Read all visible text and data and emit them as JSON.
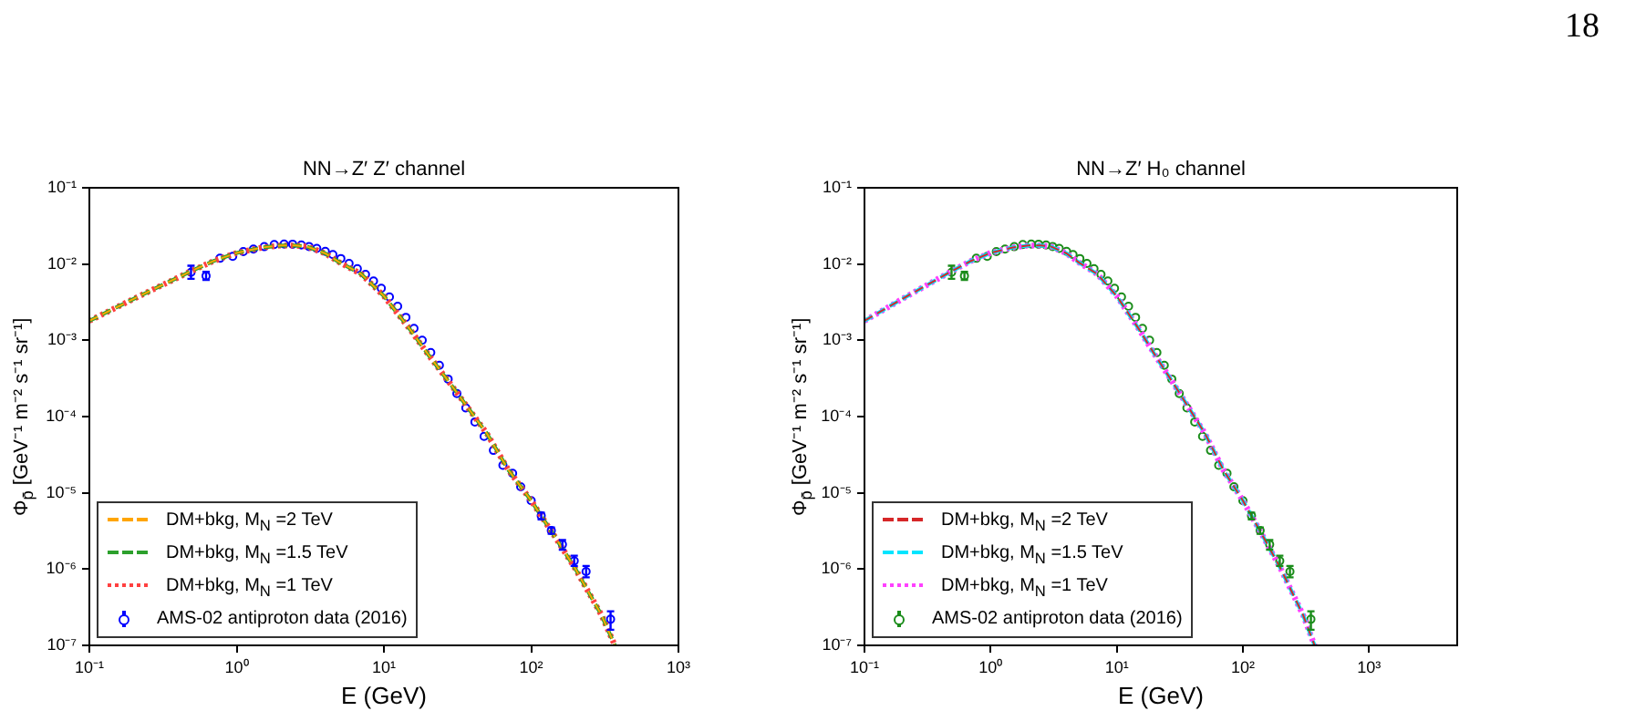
{
  "chart_data": [
    {
      "type": "line",
      "title": "NN→Z′ Z′ channel",
      "xlabel": "E (GeV)",
      "ylabel": "Φ$_{p̄}$ [GeV⁻¹ m⁻² s⁻¹ sr⁻¹]",
      "log": "xy",
      "legend": "bottom left",
      "xlim": [
        0.1,
        1000
      ],
      "xticks": [
        {
          "value": 0.1,
          "label": "10⁻¹"
        },
        {
          "value": 1,
          "label": "10⁰"
        },
        {
          "value": 10,
          "label": "10¹"
        },
        {
          "value": 100,
          "label": "10²"
        },
        {
          "value": 1000,
          "label": "10³"
        }
      ],
      "ylim": [
        1e-07,
        0.1
      ],
      "yticks": [
        {
          "value": 1e-07,
          "label": "10⁻⁷"
        },
        {
          "value": 1e-06,
          "label": "10⁻⁶"
        },
        {
          "value": 1e-05,
          "label": "10⁻⁵"
        },
        {
          "value": 0.0001,
          "label": "10⁻⁴"
        },
        {
          "value": 0.001,
          "label": "10⁻³"
        },
        {
          "value": 0.01,
          "label": "10⁻²"
        },
        {
          "value": 0.1,
          "label": "10⁻¹"
        }
      ],
      "series": [
        {
          "name": "DM+bkg, M$_{N}$ =2 TeV",
          "type": "line",
          "color": "#ffa500",
          "line_style": "dashed",
          "x": [
            0.1,
            0.2,
            0.3,
            0.5,
            0.7,
            1,
            1.5,
            2,
            2.5,
            3,
            4,
            5,
            7,
            10,
            15,
            20,
            30,
            50,
            70,
            100,
            150,
            200,
            300,
            370
          ],
          "values": [
            0.0018,
            0.0035,
            0.0051,
            0.0082,
            0.011,
            0.014,
            0.0165,
            0.0175,
            0.0175,
            0.017,
            0.0138,
            0.0105,
            0.0074,
            0.0038,
            0.0014,
            0.00065,
            0.00023,
            6e-05,
            2e-05,
            7.9e-06,
            2.4e-06,
            1e-06,
            2.5e-07,
            1e-07
          ]
        },
        {
          "name": "DM+bkg, M$_{N}$ =1.5 TeV",
          "type": "line",
          "color": "#2ca02c",
          "line_style": "dashed",
          "x": [
            0.1,
            0.2,
            0.3,
            0.5,
            0.7,
            1,
            1.5,
            2,
            2.5,
            3,
            4,
            5,
            7,
            10,
            15,
            20,
            30,
            50,
            70,
            100,
            150,
            200,
            300,
            370
          ],
          "values": [
            0.0018,
            0.0035,
            0.0051,
            0.0082,
            0.011,
            0.014,
            0.0165,
            0.0175,
            0.0175,
            0.017,
            0.0138,
            0.0105,
            0.0074,
            0.0038,
            0.0014,
            0.00065,
            0.00023,
            6e-05,
            2e-05,
            7.9e-06,
            2.4e-06,
            1e-06,
            2.5e-07,
            1e-07
          ]
        },
        {
          "name": "DM+bkg, M$_{N}$ =1 TeV",
          "type": "line",
          "color": "#ff4040",
          "line_style": "dotted",
          "x": [
            0.1,
            0.2,
            0.3,
            0.5,
            0.7,
            1,
            1.5,
            2,
            2.5,
            3,
            4,
            5,
            7,
            10,
            15,
            20,
            30,
            50,
            70,
            100,
            150,
            200,
            300,
            370
          ],
          "values": [
            0.0018,
            0.0035,
            0.0051,
            0.0082,
            0.011,
            0.014,
            0.0165,
            0.0175,
            0.0175,
            0.017,
            0.0138,
            0.0105,
            0.0074,
            0.0038,
            0.0014,
            0.00065,
            0.00023,
            6e-05,
            2e-05,
            7.9e-06,
            2.4e-06,
            1e-06,
            2.5e-07,
            1e-07
          ]
        },
        {
          "name": "AMS-02 antiproton data (2016)",
          "type": "scatter",
          "color": "#0000ff",
          "marker": "circle",
          "x": [
            0.49,
            0.62,
            0.77,
            0.94,
            1.11,
            1.3,
            1.54,
            1.8,
            2.1,
            2.4,
            2.75,
            3.1,
            3.5,
            4,
            4.5,
            5.1,
            5.8,
            6.6,
            7.5,
            8.5,
            9.6,
            10.9,
            12.4,
            14.1,
            16,
            18.2,
            20.8,
            23.8,
            27.3,
            31.3,
            36,
            41.5,
            47.9,
            55.4,
            64.3,
            74.8,
            84.9,
            100,
            117,
            137,
            163,
            196,
            236,
            346
          ],
          "values": [
            0.0078,
            0.007,
            0.0119,
            0.0126,
            0.0146,
            0.0157,
            0.0169,
            0.018,
            0.0183,
            0.0182,
            0.0178,
            0.017,
            0.016,
            0.0147,
            0.0133,
            0.0118,
            0.0102,
            0.0087,
            0.0073,
            0.006,
            0.0048,
            0.0037,
            0.0028,
            0.002,
            0.00143,
            0.001,
            0.00069,
            0.00047,
            0.00031,
            0.0002,
            0.00013,
            8.5e-05,
            5.5e-05,
            3.6e-05,
            2.3e-05,
            1.8e-05,
            1.2e-05,
            7.9e-06,
            5e-06,
            3.2e-06,
            2.1e-06,
            1.28e-06,
            9.3e-07,
            2.2e-07
          ],
          "errors": [
            [
              0.0064,
              0.0095
            ],
            [
              0.0062,
              0.0079
            ],
            null,
            null,
            null,
            null,
            null,
            null,
            null,
            null,
            null,
            null,
            null,
            null,
            null,
            null,
            null,
            null,
            null,
            null,
            null,
            null,
            null,
            null,
            null,
            null,
            null,
            null,
            null,
            null,
            null,
            null,
            null,
            null,
            null,
            null,
            null,
            null,
            [
              4.5e-06,
              5.5e-06
            ],
            [
              2.9e-06,
              3.5e-06
            ],
            [
              1.8e-06,
              2.4e-06
            ],
            [
              1.1e-06,
              1.5e-06
            ],
            [
              7.8e-07,
              1.1e-06
            ],
            [
              1.6e-07,
              2.8e-07
            ]
          ]
        }
      ]
    },
    {
      "type": "line",
      "title": "NN→Z′ H₀ channel",
      "xlabel": "E (GeV)",
      "ylabel": "Φ$_{p̄}$ [GeV⁻¹ m⁻² s⁻¹ sr⁻¹]",
      "log": "xy",
      "legend": "bottom left",
      "annotations": [
        "18"
      ],
      "xlim": [
        0.1,
        5000
      ],
      "xticks": [
        {
          "value": 0.1,
          "label": "10⁻¹"
        },
        {
          "value": 1,
          "label": "10⁰"
        },
        {
          "value": 10,
          "label": "10¹"
        },
        {
          "value": 100,
          "label": "10²"
        },
        {
          "value": 1000,
          "label": "10³"
        }
      ],
      "ylim": [
        1e-07,
        0.1
      ],
      "yticks": [
        {
          "value": 1e-07,
          "label": "10⁻⁷"
        },
        {
          "value": 1e-06,
          "label": "10⁻⁶"
        },
        {
          "value": 1e-05,
          "label": "10⁻⁵"
        },
        {
          "value": 0.0001,
          "label": "10⁻⁴"
        },
        {
          "value": 0.001,
          "label": "10⁻³"
        },
        {
          "value": 0.01,
          "label": "10⁻²"
        },
        {
          "value": 0.1,
          "label": "10⁻¹"
        }
      ],
      "series": [
        {
          "name": "DM+bkg, M$_{N}$ =2 TeV",
          "type": "line",
          "color": "#d62728",
          "line_style": "dashed",
          "x": [
            0.1,
            0.2,
            0.3,
            0.5,
            0.7,
            1,
            1.5,
            2,
            2.5,
            3,
            4,
            5,
            7,
            10,
            15,
            20,
            30,
            50,
            70,
            100,
            150,
            200,
            300,
            370
          ],
          "values": [
            0.0018,
            0.0035,
            0.0051,
            0.0082,
            0.011,
            0.014,
            0.0165,
            0.0175,
            0.0175,
            0.017,
            0.0138,
            0.0105,
            0.0074,
            0.0038,
            0.0014,
            0.00065,
            0.00023,
            6e-05,
            2e-05,
            7.9e-06,
            2.4e-06,
            1e-06,
            2.5e-07,
            1e-07
          ]
        },
        {
          "name": "DM+bkg, M$_{N}$ =1.5 TeV",
          "type": "line",
          "color": "#00e5ff",
          "line_style": "dashed",
          "x": [
            0.1,
            0.2,
            0.3,
            0.5,
            0.7,
            1,
            1.5,
            2,
            2.5,
            3,
            4,
            5,
            7,
            10,
            15,
            20,
            30,
            50,
            70,
            100,
            150,
            200,
            300,
            370
          ],
          "values": [
            0.0018,
            0.0035,
            0.0051,
            0.0082,
            0.011,
            0.014,
            0.0165,
            0.0175,
            0.0175,
            0.017,
            0.0138,
            0.0105,
            0.0074,
            0.0038,
            0.0014,
            0.00065,
            0.00023,
            6e-05,
            2e-05,
            7.9e-06,
            2.4e-06,
            1e-06,
            2.5e-07,
            1e-07
          ]
        },
        {
          "name": "DM+bkg, M$_{N}$ =1 TeV",
          "type": "line",
          "color": "#ff40ff",
          "line_style": "dotted",
          "x": [
            0.1,
            0.2,
            0.3,
            0.5,
            0.7,
            1,
            1.5,
            2,
            2.5,
            3,
            4,
            5,
            7,
            10,
            15,
            20,
            30,
            50,
            70,
            100,
            150,
            200,
            300,
            370
          ],
          "values": [
            0.0018,
            0.0035,
            0.0051,
            0.0082,
            0.011,
            0.014,
            0.0165,
            0.0175,
            0.0175,
            0.017,
            0.0138,
            0.0105,
            0.0074,
            0.0038,
            0.0014,
            0.00065,
            0.00023,
            6e-05,
            2e-05,
            7.9e-06,
            2.4e-06,
            1e-06,
            2.5e-07,
            1e-07
          ]
        },
        {
          "name": "AMS-02 antiproton data (2016)",
          "type": "scatter",
          "color": "#1a8c1a",
          "marker": "circle",
          "x": [
            0.49,
            0.62,
            0.77,
            0.94,
            1.11,
            1.3,
            1.54,
            1.8,
            2.1,
            2.4,
            2.75,
            3.1,
            3.5,
            4,
            4.5,
            5.1,
            5.8,
            6.6,
            7.5,
            8.5,
            9.6,
            10.9,
            12.4,
            14.1,
            16,
            18.2,
            20.8,
            23.8,
            27.3,
            31.3,
            36,
            41.5,
            47.9,
            55.4,
            64.3,
            74.8,
            84.9,
            100,
            117,
            137,
            163,
            196,
            236,
            346
          ],
          "values": [
            0.0078,
            0.007,
            0.0119,
            0.0126,
            0.0146,
            0.0157,
            0.0169,
            0.018,
            0.0183,
            0.0182,
            0.0178,
            0.017,
            0.016,
            0.0147,
            0.0133,
            0.0118,
            0.0102,
            0.0087,
            0.0073,
            0.006,
            0.0048,
            0.0037,
            0.0028,
            0.002,
            0.00143,
            0.001,
            0.00069,
            0.00047,
            0.00031,
            0.0002,
            0.00013,
            8.5e-05,
            5.5e-05,
            3.6e-05,
            2.3e-05,
            1.8e-05,
            1.2e-05,
            7.9e-06,
            5e-06,
            3.2e-06,
            2.1e-06,
            1.28e-06,
            9.3e-07,
            2.2e-07
          ],
          "errors": [
            [
              0.0064,
              0.0095
            ],
            [
              0.0062,
              0.0079
            ],
            null,
            null,
            null,
            null,
            null,
            null,
            null,
            null,
            null,
            null,
            null,
            null,
            null,
            null,
            null,
            null,
            null,
            null,
            null,
            null,
            null,
            null,
            null,
            null,
            null,
            null,
            null,
            null,
            null,
            null,
            null,
            null,
            null,
            null,
            null,
            null,
            [
              4.5e-06,
              5.5e-06
            ],
            [
              2.9e-06,
              3.5e-06
            ],
            [
              1.8e-06,
              2.4e-06
            ],
            [
              1.1e-06,
              1.5e-06
            ],
            [
              7.8e-07,
              1.1e-06
            ],
            [
              1.6e-07,
              2.8e-07
            ]
          ]
        }
      ]
    }
  ]
}
